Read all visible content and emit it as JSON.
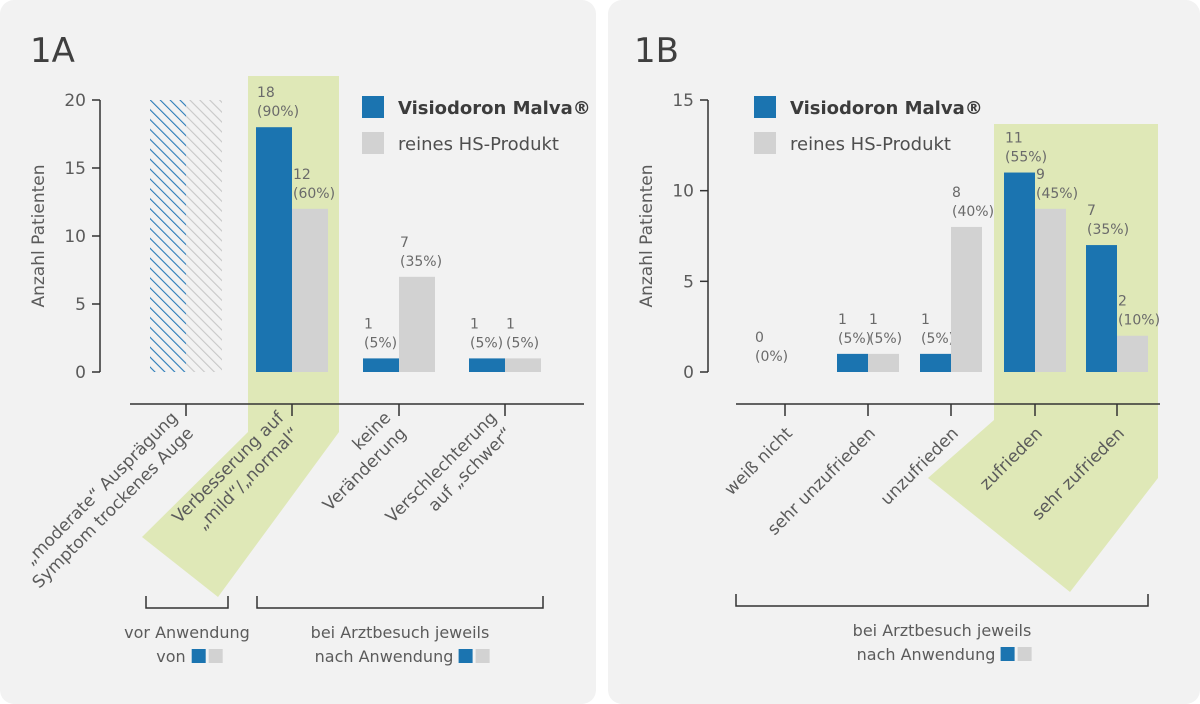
{
  "colors": {
    "blue": "#1b74b0",
    "gray": "#d2d2d2",
    "green": "#dfe8b7",
    "axis": "#333333",
    "hatch_blue": "#2a7bb8",
    "hatch_gray": "#c8c8c8"
  },
  "chart_data": [
    {
      "id": "1A",
      "type": "bar",
      "panel_label": "1A",
      "ylabel": "Anzahl Patienten",
      "ylim": [
        0,
        20
      ],
      "yticks": [
        0,
        5,
        10,
        15,
        20
      ],
      "legend": [
        "Visiodoron Malva®",
        "reines HS-Produkt"
      ],
      "legend_placement": "top-right",
      "series": [
        {
          "name": "Visiodoron Malva®",
          "color": "blue",
          "values": [
            20,
            18,
            1,
            1
          ],
          "labels": [
            "",
            "18\n(90%)",
            "1\n(5%)",
            "1\n(5%)"
          ]
        },
        {
          "name": "reines HS-Produkt",
          "color": "gray",
          "values": [
            20,
            12,
            7,
            1
          ],
          "labels": [
            "",
            "12\n(60%)",
            "7\n(35%)",
            "1\n(5%)"
          ]
        }
      ],
      "categories": [
        "„moderate“ Ausprägung\nSymptom trockenes Auge",
        "Verbesserung auf\n„mild“/„normal“",
        "keine\nVeränderung",
        "Verschlechterung\nauf „schwer“"
      ],
      "hatched_category_index": 0,
      "highlighted_category_index": 1,
      "groups": [
        {
          "text": "vor Anwendung\nvon",
          "from": 0,
          "to": 0
        },
        {
          "text": "bei Arztbesuch jeweils\nnach Anwendung",
          "from": 1,
          "to": 3
        }
      ]
    },
    {
      "id": "1B",
      "type": "bar",
      "panel_label": "1B",
      "ylabel": "Anzahl Patienten",
      "ylim": [
        0,
        15
      ],
      "yticks": [
        0,
        5,
        10,
        15
      ],
      "legend": [
        "Visiodoron Malva®",
        "reines HS-Produkt"
      ],
      "legend_placement": "top-left",
      "series": [
        {
          "name": "Visiodoron Malva®",
          "color": "blue",
          "values": [
            0,
            1,
            1,
            11,
            7
          ],
          "labels": [
            "0\n(0%)",
            "1\n(5%)",
            "1\n(5%)",
            "11\n(55%)",
            "7\n(35%)"
          ]
        },
        {
          "name": "reines HS-Produkt",
          "color": "gray",
          "values": [
            0,
            1,
            8,
            9,
            2
          ],
          "labels": [
            "",
            "1\n(5%)",
            "8\n(40%)",
            "9\n(45%)",
            "2\n(10%)"
          ]
        }
      ],
      "categories": [
        "weiß nicht",
        "sehr unzufrieden",
        "unzufrieden",
        "zufrieden",
        "sehr zufrieden"
      ],
      "highlighted_category_range": [
        3,
        4
      ],
      "groups": [
        {
          "text": "bei Arztbesuch jeweils\nnach Anwendung",
          "from": 0,
          "to": 4
        }
      ]
    }
  ]
}
